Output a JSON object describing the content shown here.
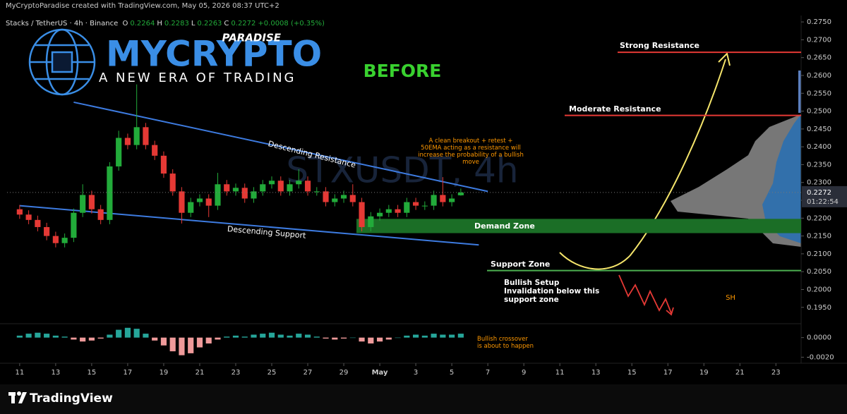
{
  "header": {
    "credit": "MyCryptoParadise created with TradingView.com, May 05, 2026 08:37 UTC+2",
    "symbol": "Stacks / TetherUS · 4h · Binance",
    "ohlc": [
      {
        "key": "O",
        "value": "0.2264"
      },
      {
        "key": "H",
        "value": "0.2283"
      },
      {
        "key": "L",
        "value": "0.2263"
      },
      {
        "key": "C",
        "value": "0.2272"
      }
    ],
    "change": "+0.0008 (+0.35%)"
  },
  "logo": {
    "brand": "MYCRYPTO",
    "tag": "PARADISE",
    "slogan": "A NEW ERA OF TRADING"
  },
  "stamp": "BEFORE",
  "watermark": "STXUSDT, 4h",
  "marker": "SH",
  "notes": {
    "breakout": "A clean breakout + retest + 50EMA acting as a resistance will increase the probability of a bullish move",
    "invalidation": "Bullish Setup Invalidation below this support zone",
    "crossover": "Bullish crossover is about to happen"
  },
  "footer": {
    "brand": "TradingView"
  },
  "chart_data": [
    {
      "type": "candlestick",
      "x": [
        11,
        11.5,
        12,
        12.5,
        13,
        13.5,
        14,
        14.5,
        15,
        15.5,
        16,
        16.5,
        17,
        17.5,
        18,
        18.5,
        19,
        19.5,
        20,
        20.5,
        21,
        21.5,
        22,
        22.5,
        23,
        23.5,
        24,
        24.5,
        25,
        25.5,
        26,
        26.5,
        27,
        27.5,
        28,
        28.5,
        29,
        29.5,
        30,
        30.5,
        31,
        31.5,
        32,
        32.5,
        33,
        33.5,
        34,
        34.5,
        35,
        35.5
      ],
      "open": [
        0.2225,
        0.221,
        0.2195,
        0.2175,
        0.215,
        0.213,
        0.2145,
        0.2215,
        0.2265,
        0.2225,
        0.2195,
        0.2345,
        0.2425,
        0.2405,
        0.2455,
        0.2405,
        0.2375,
        0.2325,
        0.2275,
        0.2215,
        0.2245,
        0.2255,
        0.2235,
        0.2295,
        0.2275,
        0.2285,
        0.2255,
        0.2275,
        0.2295,
        0.2305,
        0.2275,
        0.2295,
        0.2305,
        0.2275,
        0.2275,
        0.2245,
        0.2255,
        0.2265,
        0.2245,
        0.2175,
        0.2205,
        0.2215,
        0.2225,
        0.2215,
        0.2245,
        0.2235,
        0.2235,
        0.2265,
        0.2245,
        0.2264
      ],
      "high": [
        0.2237,
        0.2222,
        0.2207,
        0.2187,
        0.2162,
        0.2157,
        0.2227,
        0.2295,
        0.2277,
        0.2237,
        0.2357,
        0.2445,
        0.2437,
        0.2575,
        0.2467,
        0.2417,
        0.2387,
        0.2337,
        0.2287,
        0.2257,
        0.2267,
        0.2267,
        0.2327,
        0.2307,
        0.2297,
        0.2297,
        0.2287,
        0.2307,
        0.2317,
        0.2317,
        0.2307,
        0.2337,
        0.2317,
        0.2287,
        0.2287,
        0.2267,
        0.2277,
        0.2295,
        0.2257,
        0.2217,
        0.2227,
        0.2237,
        0.2237,
        0.2257,
        0.2257,
        0.2247,
        0.2277,
        0.2315,
        0.2267,
        0.2283
      ],
      "low": [
        0.2198,
        0.2183,
        0.2163,
        0.2138,
        0.2118,
        0.2118,
        0.2133,
        0.2203,
        0.2213,
        0.2183,
        0.2183,
        0.2333,
        0.2393,
        0.2393,
        0.2393,
        0.2363,
        0.2313,
        0.2263,
        0.2185,
        0.2203,
        0.2233,
        0.2203,
        0.2223,
        0.2263,
        0.2263,
        0.2243,
        0.2243,
        0.2263,
        0.2283,
        0.2263,
        0.2263,
        0.2283,
        0.2263,
        0.2263,
        0.2233,
        0.2233,
        0.2243,
        0.2233,
        0.2163,
        0.2163,
        0.2193,
        0.2203,
        0.2203,
        0.2203,
        0.2223,
        0.2223,
        0.2223,
        0.2233,
        0.2233,
        0.2263
      ],
      "close": [
        0.221,
        0.2195,
        0.2175,
        0.215,
        0.213,
        0.2145,
        0.2215,
        0.2265,
        0.2225,
        0.2195,
        0.2345,
        0.2425,
        0.2405,
        0.2455,
        0.2405,
        0.2375,
        0.2325,
        0.2275,
        0.2215,
        0.2245,
        0.2255,
        0.2235,
        0.2295,
        0.2275,
        0.2285,
        0.2255,
        0.2275,
        0.2295,
        0.2305,
        0.2275,
        0.2295,
        0.2305,
        0.2275,
        0.2275,
        0.2245,
        0.2255,
        0.2265,
        0.2245,
        0.2175,
        0.2205,
        0.2215,
        0.2225,
        0.2215,
        0.2245,
        0.2235,
        0.2235,
        0.2265,
        0.2245,
        0.2255,
        0.2272
      ],
      "up_color": "#22ab3a",
      "down_color": "#e53935",
      "xlim": [
        10.3,
        54.4
      ],
      "ylim": [
        0.191,
        0.2768
      ],
      "xticks": [
        11,
        13,
        15,
        17,
        19,
        21,
        23,
        25,
        27,
        29,
        {
          "value": 31,
          "label": "May"
        },
        {
          "value": 33,
          "label": "3"
        },
        {
          "value": 35,
          "label": "5"
        },
        {
          "value": 37,
          "label": "7"
        },
        {
          "value": 39,
          "label": "9"
        },
        {
          "value": 41,
          "label": "11"
        },
        {
          "value": 43,
          "label": "13"
        },
        {
          "value": 45,
          "label": "15"
        },
        {
          "value": 47,
          "label": "17"
        },
        {
          "value": 49,
          "label": "19"
        },
        {
          "value": 51,
          "label": "21"
        },
        {
          "value": 53,
          "label": "23"
        }
      ],
      "yticks": [
        {
          "value": 0.275,
          "label": "0.2750"
        },
        {
          "value": 0.27,
          "label": "0.2700"
        },
        {
          "value": 0.265,
          "label": "0.2650"
        },
        {
          "value": 0.26,
          "label": "0.2600"
        },
        {
          "value": 0.255,
          "label": "0.2550"
        },
        {
          "value": 0.25,
          "label": "0.2500"
        },
        {
          "value": 0.245,
          "label": "0.2450"
        },
        {
          "value": 0.24,
          "label": "0.2400"
        },
        {
          "value": 0.235,
          "label": "0.2350"
        },
        {
          "value": 0.23,
          "label": "0.2300"
        },
        {
          "value": 0.225,
          "label": "0.2250"
        },
        {
          "value": 0.22,
          "label": "0.2200"
        },
        {
          "value": 0.215,
          "label": "0.2150"
        },
        {
          "value": 0.21,
          "label": "0.2100"
        },
        {
          "value": 0.205,
          "label": "0.2050"
        },
        {
          "value": 0.2,
          "label": "0.2000"
        },
        {
          "value": 0.195,
          "label": "0.1950"
        }
      ],
      "levels": [
        {
          "label": "Strong Resistance",
          "value": 0.2665,
          "color": "#e53935"
        },
        {
          "label": "Moderate Resistance",
          "value": 0.2488,
          "color": "#e53935"
        },
        {
          "label": "Support Zone",
          "value": 0.2053,
          "color": "#4caf50"
        }
      ],
      "zones": [
        {
          "label": "Demand Zone",
          "low": 0.2158,
          "high": 0.2198,
          "color": "#1b6e26"
        }
      ],
      "trendlines": [
        {
          "label": "Descending Resistance",
          "x": [
            14,
            37
          ],
          "values": [
            0.2525,
            0.2275
          ],
          "color": "#3d7be0"
        },
        {
          "label": "Descending Support",
          "x": [
            11,
            36.5
          ],
          "values": [
            0.2235,
            0.2125
          ],
          "color": "#3d7be0"
        }
      ],
      "last_price": 0.2272,
      "countdown": "01:22:54"
    },
    {
      "type": "histogram",
      "values": [
        0.0002,
        0.0004,
        0.0005,
        0.0004,
        0.0002,
        0.0001,
        -0.0002,
        -0.0004,
        -0.0003,
        -0.0001,
        0.0003,
        0.0008,
        0.001,
        0.0009,
        0.0004,
        -0.0003,
        -0.0008,
        -0.0014,
        -0.0018,
        -0.0016,
        -0.001,
        -0.0006,
        -0.0002,
        0.0001,
        0.0002,
        0.0001,
        0.0003,
        0.0004,
        0.0005,
        0.0003,
        0.0002,
        0.0004,
        0.0003,
        0.0001,
        -0.0001,
        -0.0002,
        -0.0001,
        0,
        -0.0004,
        -0.0006,
        -0.0004,
        -0.0002,
        0,
        0.0002,
        0.0003,
        0.0002,
        0.0004,
        0.0003,
        0.0003,
        0.0004
      ],
      "positive_color": "#26a69a",
      "negative_color": "#ef9a9a",
      "ylim": [
        -0.0024,
        0.0012
      ],
      "yticks": [
        {
          "value": 0,
          "label": "0.0000"
        },
        {
          "value": -0.002,
          "label": "-0.0020"
        }
      ]
    }
  ]
}
